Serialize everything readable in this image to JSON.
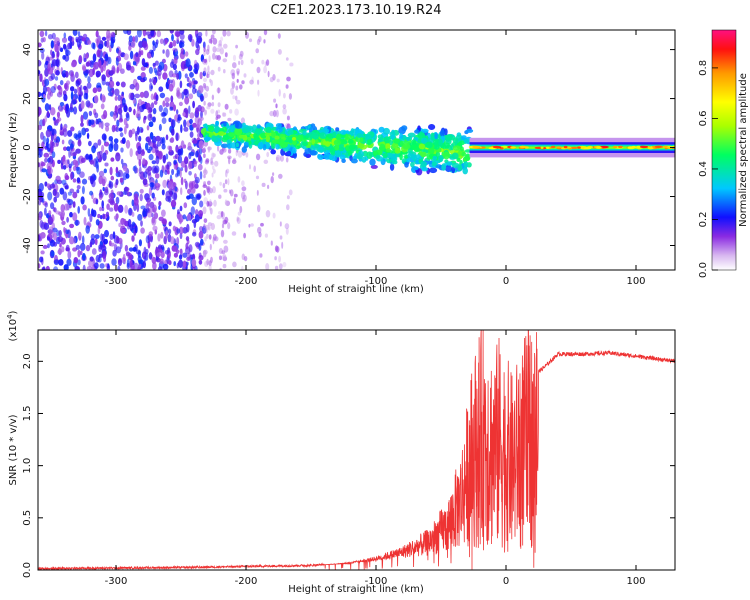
{
  "title": "C2E1.2023.173.10.19.R24",
  "chart_data": [
    {
      "type": "heatmap",
      "name": "spectrogram",
      "xlabel": "Height of straight line (km)",
      "ylabel": "Frequency (Hz)",
      "xlim": [
        -360,
        130
      ],
      "ylim": [
        -50,
        48
      ],
      "x_ticks": [
        -300,
        -200,
        -100,
        0,
        100
      ],
      "y_ticks": [
        -40,
        -20,
        0,
        20,
        40
      ],
      "colorbar": {
        "label": "Normalized spectral amplitude",
        "range": [
          0.0,
          0.95
        ],
        "ticks": [
          0.0,
          0.2,
          0.4,
          0.6,
          0.8
        ]
      },
      "regions": [
        {
          "x_start": -360,
          "x_end": -232,
          "description": "broadband noise",
          "freq_min": -50,
          "freq_max": 48,
          "amplitude": 0.2
        },
        {
          "x_start": -232,
          "x_end": -165,
          "description": "sparse noise",
          "freq_min": -50,
          "freq_max": 48,
          "amplitude": 0.08
        },
        {
          "x_start": -232,
          "x_end": -28,
          "description": "signal band",
          "center_freq_start": 6,
          "center_freq_end": -2,
          "width": 10,
          "amplitude": 0.4
        },
        {
          "x_start": -28,
          "x_end": 130,
          "description": "narrow carrier line",
          "center_freq": 0,
          "width": 4,
          "amplitude": 0.8
        }
      ]
    },
    {
      "type": "line",
      "name": "snr",
      "xlabel": "Height of straight line (km)",
      "ylabel": "SNR (10 * v/v)",
      "y_multiplier": "(x10",
      "y_multiplier_exp": "4",
      "y_multiplier_close": ")",
      "xlim": [
        -360,
        130
      ],
      "ylim": [
        0.0,
        2.3
      ],
      "x_ticks": [
        -300,
        -200,
        -100,
        0,
        100
      ],
      "y_ticks": [
        0.0,
        0.5,
        1.0,
        1.5,
        2.0
      ],
      "series": [
        {
          "name": "SNR",
          "color": "#ee3333",
          "x": [
            -360,
            -300,
            -250,
            -200,
            -150,
            -120,
            -100,
            -80,
            -60,
            -45,
            -35,
            -28,
            -22,
            -15,
            -10,
            -5,
            0,
            5,
            10,
            15,
            20,
            30,
            40,
            60,
            80,
            100,
            130
          ],
          "y": [
            0.01,
            0.015,
            0.02,
            0.03,
            0.04,
            0.07,
            0.12,
            0.2,
            0.33,
            0.55,
            0.9,
            1.4,
            1.75,
            1.85,
            1.6,
            1.75,
            1.6,
            1.45,
            1.6,
            1.75,
            1.85,
            1.95,
            2.07,
            2.07,
            2.08,
            2.05,
            2.0
          ]
        }
      ]
    }
  ]
}
